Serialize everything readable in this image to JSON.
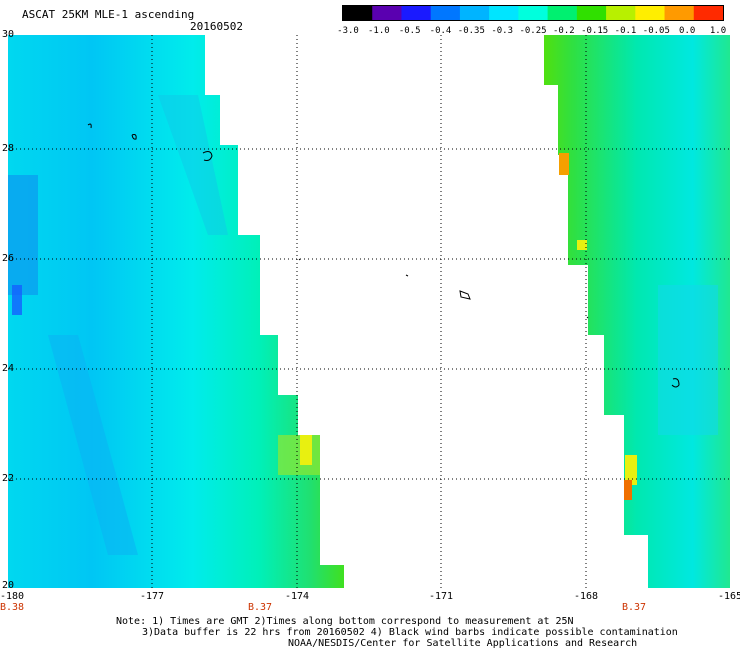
{
  "header": {
    "title": "ASCAT 25KM MLE-1 ascending",
    "date": "20160502"
  },
  "colorbar": {
    "labels": [
      "-3.0",
      "-1.0",
      "-0.5",
      "-0.4",
      "-0.35",
      "-0.3",
      "-0.25",
      "-0.2",
      "-0.15",
      "-0.1",
      "-0.05",
      "0.0",
      "1.0"
    ],
    "colors": [
      "#000000",
      "#5a00b0",
      "#1a1aff",
      "#0077ff",
      "#00b4ff",
      "#00e5ff",
      "#00ffdd",
      "#00f070",
      "#30e000",
      "#b8f000",
      "#ffee00",
      "#ff9a00",
      "#ff2a00"
    ]
  },
  "map": {
    "lat_labels": [
      "30",
      "28",
      "26",
      "24",
      "22",
      "20"
    ],
    "lon_labels": [
      "-180",
      "-177",
      "-174",
      "-171",
      "-168",
      "-165"
    ],
    "pass_markers": [
      "B.38",
      "B.37",
      "B.37"
    ],
    "extent": {
      "lon": [
        -180,
        -165
      ],
      "lat": [
        20,
        30
      ]
    }
  },
  "notes": {
    "line1": "Note: 1) Times are GMT 2)Times along bottom correspond to measurement at 25N",
    "line2": "3)Data buffer is 22 hrs from 20160502 4) Black wind barbs indicate possible contamination",
    "line3": "NOAA/NESDIS/Center for Satellite Applications and Research"
  }
}
